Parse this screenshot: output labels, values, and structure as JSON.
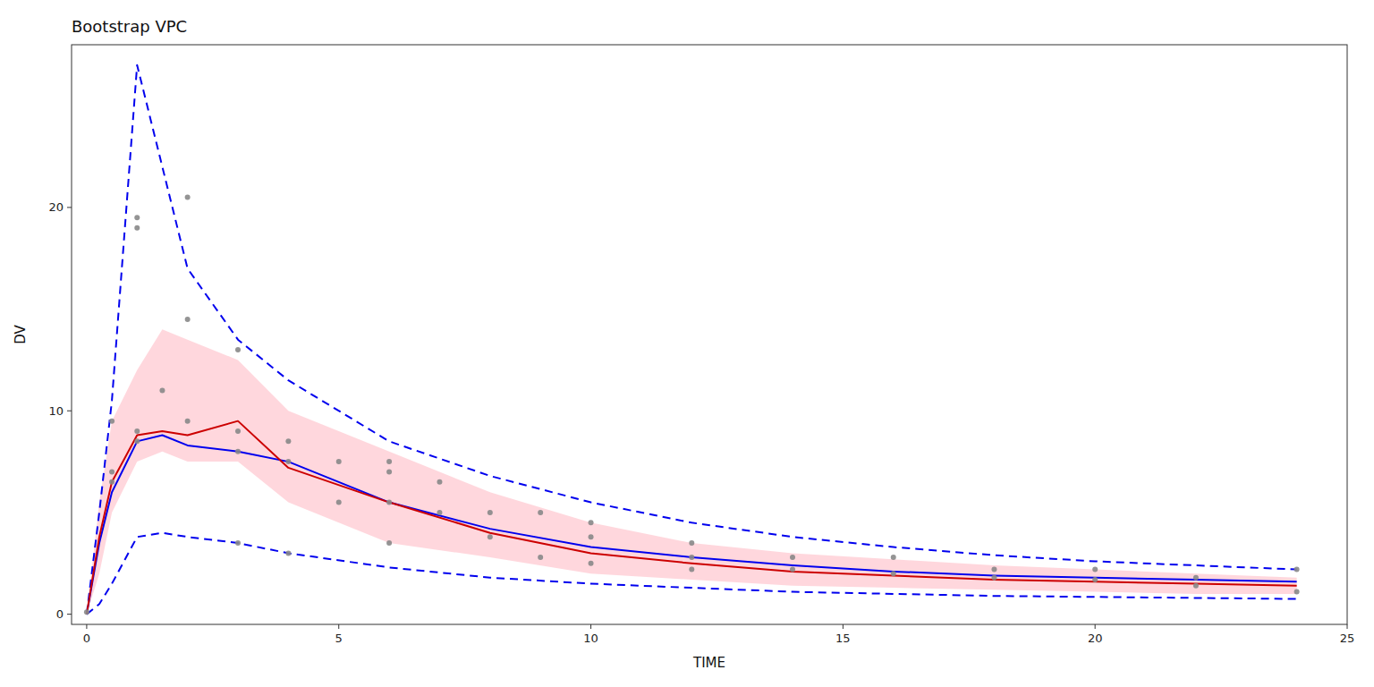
{
  "chart_data": {
    "type": "line",
    "title": "Bootstrap VPC",
    "x_label": "TIME",
    "y_label": "DV",
    "xlim": [
      -0.3,
      25
    ],
    "ylim": [
      -0.5,
      28
    ],
    "xticks": [
      0,
      5,
      10,
      15,
      20,
      25
    ],
    "yticks": [
      0,
      10,
      20
    ],
    "grid": false,
    "x": [
      0,
      0.25,
      0.5,
      1.0,
      1.5,
      2.0,
      3.0,
      4.0,
      6.0,
      8.0,
      10.0,
      12.0,
      14.0,
      16.0,
      18.0,
      20.0,
      22.0,
      24.0
    ],
    "series": [
      {
        "type": "area",
        "color": "#FFB6C1",
        "lower": [
          0.0,
          2.0,
          5.0,
          7.5,
          8.0,
          7.5,
          7.5,
          5.5,
          3.5,
          2.8,
          2.0,
          1.7,
          1.4,
          1.3,
          1.2,
          1.1,
          1.0,
          1.0
        ],
        "upper": [
          0.0,
          5.5,
          9.5,
          12.0,
          14.0,
          13.5,
          12.5,
          10.0,
          8.0,
          6.0,
          4.5,
          3.5,
          3.0,
          2.7,
          2.4,
          2.2,
          2.0,
          1.8
        ]
      },
      {
        "type": "line",
        "color": "#0000EE",
        "line_style": "dashed",
        "values": [
          0.0,
          0.5,
          1.5,
          3.8,
          4.0,
          3.8,
          3.5,
          3.0,
          2.3,
          1.8,
          1.5,
          1.3,
          1.1,
          1.0,
          0.9,
          0.85,
          0.8,
          0.75
        ]
      },
      {
        "type": "line",
        "color": "#0000EE",
        "line_style": "dashed",
        "values": [
          0.0,
          5.0,
          10.5,
          27.0,
          22.0,
          17.0,
          13.5,
          11.5,
          8.5,
          6.8,
          5.5,
          4.5,
          3.8,
          3.3,
          2.9,
          2.6,
          2.4,
          2.2
        ]
      },
      {
        "type": "line",
        "color": "#0000EE",
        "line_style": "solid",
        "values": [
          0.0,
          3.5,
          6.0,
          8.5,
          8.8,
          8.3,
          8.0,
          7.5,
          5.5,
          4.2,
          3.3,
          2.8,
          2.4,
          2.1,
          1.9,
          1.8,
          1.7,
          1.6
        ]
      },
      {
        "type": "line",
        "color": "#CC0000",
        "line_style": "solid",
        "values": [
          0.0,
          3.8,
          6.5,
          8.8,
          9.0,
          8.8,
          9.5,
          7.2,
          5.5,
          4.0,
          3.0,
          2.5,
          2.1,
          1.9,
          1.7,
          1.6,
          1.5,
          1.4
        ]
      },
      {
        "type": "scatter",
        "color": "#888888",
        "marker": "circle",
        "x": [
          0.0,
          0.5,
          0.5,
          0.5,
          1.0,
          1.0,
          1.0,
          1.0,
          1.5,
          2.0,
          2.0,
          2.0,
          3.0,
          3.0,
          3.0,
          3.0,
          4.0,
          4.0,
          4.0,
          5.0,
          5.0,
          6.0,
          6.0,
          6.0,
          6.0,
          7.0,
          7.0,
          8.0,
          8.0,
          9.0,
          9.0,
          10.0,
          10.0,
          10.0,
          12.0,
          12.0,
          12.0,
          14.0,
          14.0,
          16.0,
          16.0,
          18.0,
          18.0,
          20.0,
          20.0,
          22.0,
          22.0,
          24.0,
          24.0
        ],
        "values": [
          0.1,
          7.0,
          6.5,
          9.5,
          19.0,
          19.5,
          8.5,
          9.0,
          11.0,
          14.5,
          20.5,
          9.5,
          13.0,
          9.0,
          8.0,
          3.5,
          8.5,
          7.5,
          3.0,
          7.5,
          5.5,
          7.5,
          7.0,
          5.5,
          3.5,
          6.5,
          5.0,
          5.0,
          3.8,
          5.0,
          2.8,
          4.5,
          3.8,
          2.5,
          3.5,
          2.8,
          2.2,
          2.8,
          2.2,
          2.8,
          2.0,
          2.2,
          1.8,
          2.2,
          1.7,
          1.8,
          1.4,
          2.2,
          1.1
        ]
      }
    ]
  }
}
